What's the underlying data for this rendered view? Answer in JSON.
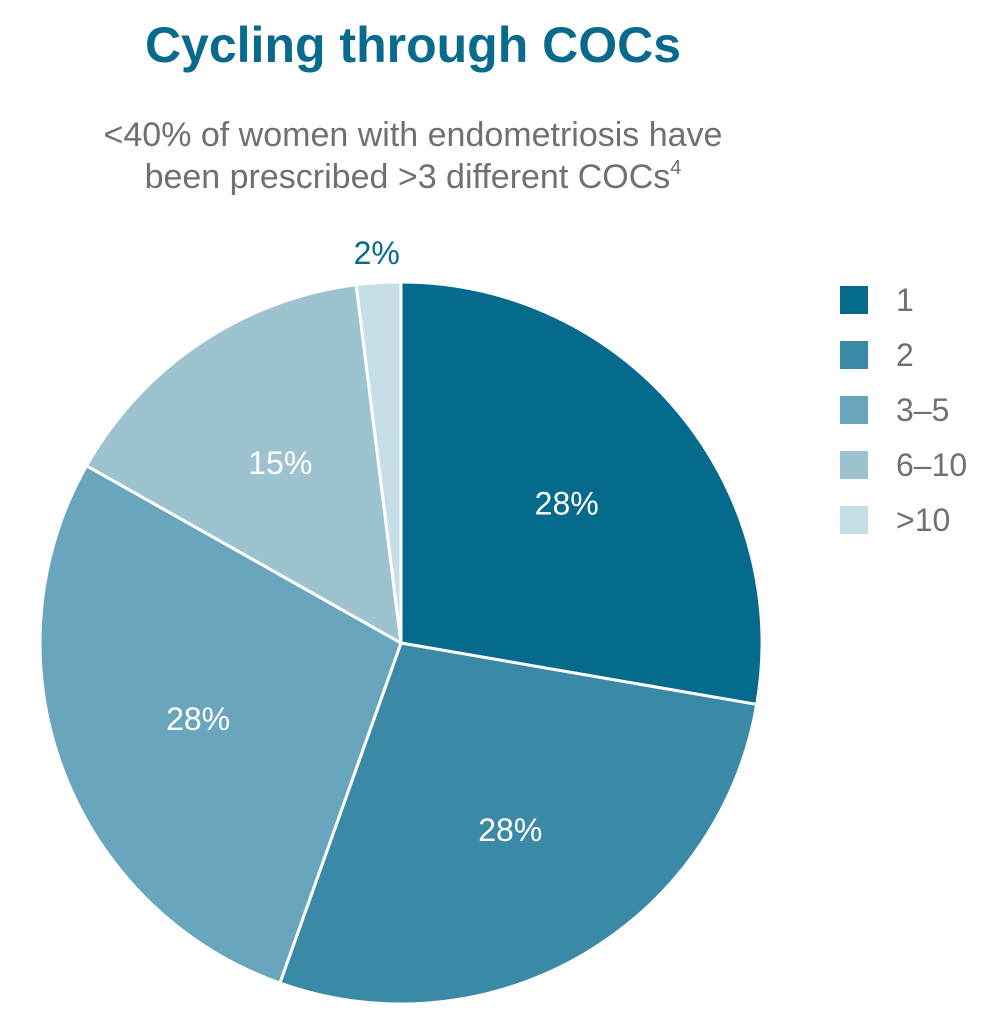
{
  "title": "Cycling through COCs",
  "subtitle": {
    "line1": "<40% of women with endometriosis have",
    "line2_text": "been prescribed >3 different COCs",
    "line2_superscript": "4"
  },
  "chart_data": {
    "type": "pie",
    "categories": [
      "1",
      "2",
      "3–5",
      "6–10",
      ">10"
    ],
    "values": [
      28,
      28,
      28,
      15,
      2
    ],
    "data_labels": [
      "28%",
      "28%",
      "28%",
      "15%",
      "2%"
    ],
    "colors": [
      "#066a8c",
      "#3a89a6",
      "#69a6bd",
      "#9dc3d1",
      "#c6dfe7"
    ],
    "label_colors": [
      "#ffffff",
      "#ffffff",
      "#ffffff",
      "#ffffff",
      "#086a8c"
    ],
    "start_angle_deg": 0,
    "direction": "clockwise",
    "legend_position": "right"
  }
}
